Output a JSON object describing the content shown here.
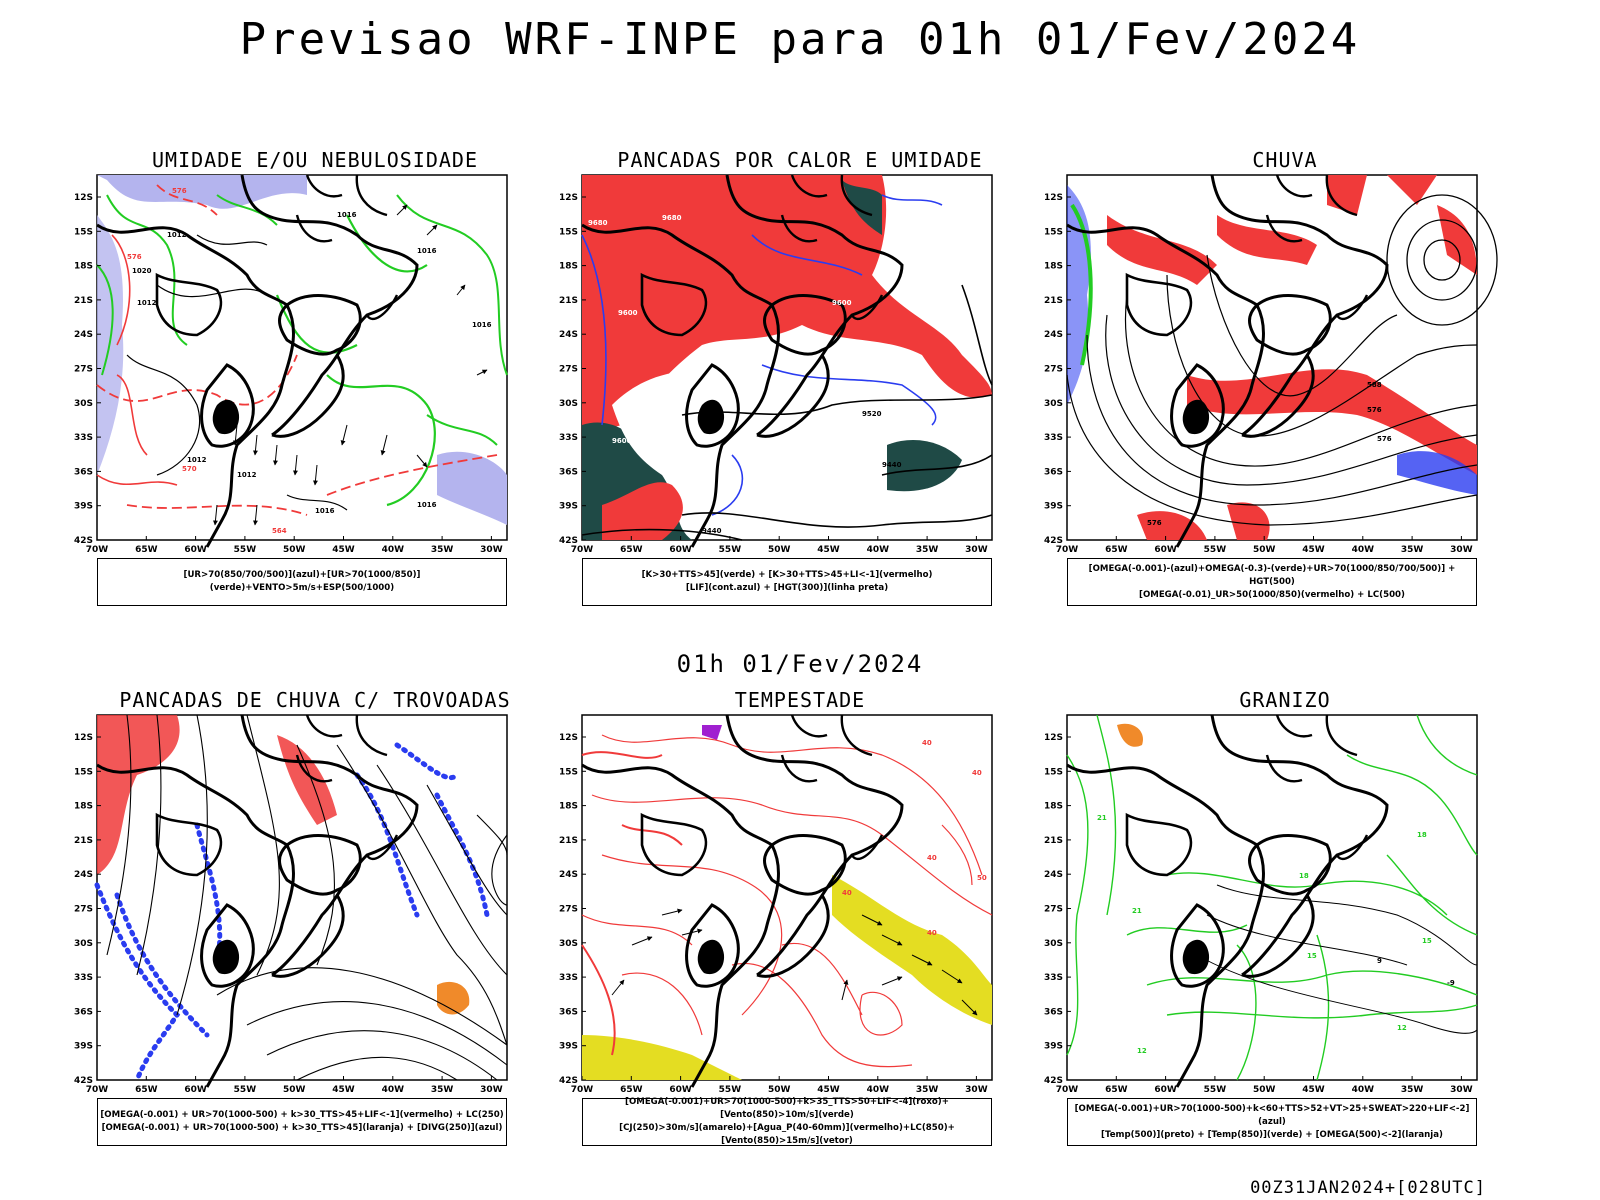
{
  "header": {
    "title": "Previsao WRF-INPE  para 01h 01/Fev/2024"
  },
  "mid_title": "01h 01/Fev/2024",
  "footer": "00Z31JAN2024+[028UTC]",
  "axes": {
    "lat_ticks": [
      "12S",
      "15S",
      "18S",
      "21S",
      "24S",
      "27S",
      "30S",
      "33S",
      "36S",
      "39S",
      "42S"
    ],
    "lon_ticks": [
      "70W",
      "65W",
      "60W",
      "55W",
      "50W",
      "45W",
      "40W",
      "35W",
      "30W"
    ]
  },
  "colors": {
    "blue": "#2a3cf0",
    "green": "#22cc22",
    "red": "#f03a3a",
    "dark_teal": "#1f4a46",
    "lavender": "#b4b4ee",
    "orange": "#f08a2a",
    "yellow": "#e4dd22",
    "purple": "#a020d0"
  },
  "panels": [
    {
      "title": "UMIDADE E/OU NEBULOSIDADE",
      "legend": [
        "[UR>70(850/700/500)](azul)+[UR>70(1000/850)](verde)+VENTO>5m/s+ESP(500/1000)"
      ],
      "contour_labels": [
        "1012",
        "1012",
        "1016",
        "1016",
        "1016",
        "1020",
        "1012",
        "1016",
        "1016",
        "1012",
        "576",
        "570",
        "576",
        "564"
      ]
    },
    {
      "title": "PANCADAS POR CALOR E UMIDADE",
      "legend": [
        "[K>30+TTS>45](verde) + [K>30+TTS>45+LI<-1](vermelho)",
        "[LIF](cont.azul) + [HGT(300)](linha preta)"
      ],
      "contour_labels": [
        "9680",
        "9680",
        "9600",
        "9600",
        "9600",
        "9600",
        "9520",
        "9520",
        "9440",
        "9440"
      ]
    },
    {
      "title": "CHUVA",
      "legend": [
        "[OMEGA(-0.001)-(azul)+OMEGA(-0.3)-(verde)+UR>70(1000/850/700/500)] + HGT(500)",
        "[OMEGA(-0.01)_UR>50(1000/850)(vermelho) + LC(500)"
      ],
      "contour_labels": [
        "588",
        "576",
        "576",
        "576"
      ]
    },
    {
      "title": "PANCADAS DE CHUVA C/ TROVOADAS",
      "legend": [
        "[OMEGA(-0.001) + UR>70(1000-500) + k>30_TTS>45+LIF<-1](vermelho) + LC(250)",
        "[OMEGA(-0.001) + UR>70(1000-500) + k>30_TTS>45](laranja) + [DIVG(250)](azul)"
      ],
      "contour_labels": []
    },
    {
      "title": "TEMPESTADE",
      "legend": [
        "[OMEGA(-0.001)+UR>70(1000-500)+k>35_TTS>50+LIF<-4](roxo)+[Vento(850)>10m/s](verde)",
        "[CJ(250)>30m/s](amarelo)+[Agua_P(40-60mm)](vermelho)+LC(850)+[Vento(850)>15m/s](vetor)"
      ],
      "contour_labels": [
        "40",
        "40",
        "40",
        "40",
        "50",
        "40"
      ]
    },
    {
      "title": "GRANIZO",
      "legend": [
        "[OMEGA(-0.001)+UR>70(1000-500)+k<60+TTS>52+VT>25+SWEAT>220+LIF<-2](azul)",
        "[Temp(500)](preto) + [Temp(850)](verde) + [OMEGA(500)<-2](laranja)"
      ],
      "contour_labels": [
        "21",
        "21",
        "18",
        "18",
        "15",
        "15",
        "12",
        "12",
        "9",
        "-9"
      ]
    }
  ]
}
